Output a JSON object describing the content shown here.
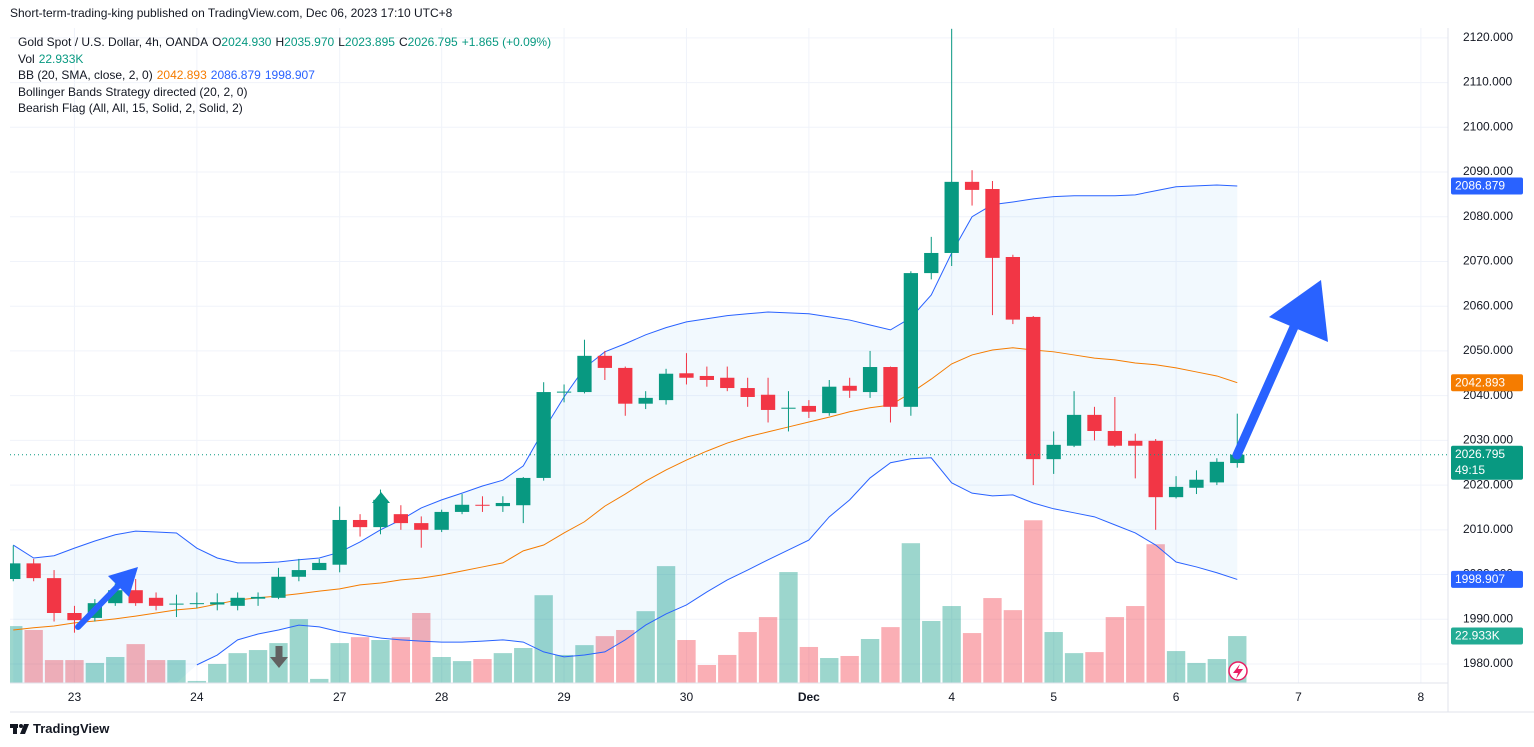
{
  "chart_data": {
    "type": "candlestick",
    "published": "Short-term-trading-king published on TradingView.com, Dec 06, 2023 17:10 UTC+8",
    "title": "Gold Spot / U.S. Dollar, 4h, OANDA",
    "brand": "TradingView",
    "ohlc_labels": [
      "O",
      "H",
      "L",
      "C"
    ],
    "open_label": "2024.930",
    "high_label": "2035.970",
    "change": "+1.865 (+0.09%)",
    "countdown": "49:15",
    "indicators": [
      "Bollinger Bands Strategy directed (20, 2, 0)",
      "Bearish Flag (All, All, 15, Solid, 2, Solid, 2)"
    ],
    "up_color": "#089981",
    "down_color": "#f23645",
    "grid": true,
    "x": [
      0,
      1,
      2,
      3,
      4,
      5,
      6,
      7,
      8,
      9,
      10,
      11,
      12,
      13,
      14,
      15,
      16,
      17,
      18,
      19,
      20,
      21,
      22,
      23,
      24,
      25,
      26,
      27,
      28,
      29,
      30,
      31,
      32,
      33,
      34,
      35,
      36,
      37,
      38,
      39,
      40,
      41,
      42,
      43,
      44,
      45,
      46,
      47,
      48,
      49,
      50,
      51,
      52,
      53,
      54,
      55,
      56,
      57,
      58,
      59,
      60
    ],
    "xlim": [
      -0.16,
      70.33
    ],
    "xticks": [
      {
        "value": 3,
        "label": "23"
      },
      {
        "value": 9,
        "label": "24"
      },
      {
        "value": 16,
        "label": "27"
      },
      {
        "value": 21,
        "label": "28"
      },
      {
        "value": 27,
        "label": "29"
      },
      {
        "value": 33,
        "label": "30"
      },
      {
        "value": 39,
        "label": "Dec"
      },
      {
        "value": 46,
        "label": "4"
      },
      {
        "value": 51,
        "label": "5"
      },
      {
        "value": 57,
        "label": "6"
      },
      {
        "value": 63,
        "label": "7"
      },
      {
        "value": 69,
        "label": "8"
      }
    ],
    "ylim": [
      1975.75,
      2122.2
    ],
    "yticks": [
      {
        "value": 1980,
        "label": "1980.000"
      },
      {
        "value": 1990,
        "label": "1990.000"
      },
      {
        "value": 2000,
        "label": "2000.000"
      },
      {
        "value": 2010,
        "label": "2010.000"
      },
      {
        "value": 2020,
        "label": "2020.000"
      },
      {
        "value": 2030,
        "label": "2030.000"
      },
      {
        "value": 2040,
        "label": "2040.000"
      },
      {
        "value": 2050,
        "label": "2050.000"
      },
      {
        "value": 2060,
        "label": "2060.000"
      },
      {
        "value": 2070,
        "label": "2070.000"
      },
      {
        "value": 2080,
        "label": "2080.000"
      },
      {
        "value": 2090,
        "label": "2090.000"
      },
      {
        "value": 2100,
        "label": "2100.000"
      },
      {
        "value": 2110,
        "label": "2110.000"
      },
      {
        "value": 2120,
        "label": "2120.000"
      }
    ],
    "open": [
      1999,
      2002.5,
      1999.2,
      1991.4,
      1990.3,
      1993.6,
      1996.5,
      1994.8,
      1993.4,
      1993.4,
      1993.3,
      1993,
      1994.6,
      1994.8,
      1999.5,
      2001,
      2002.2,
      2012.2,
      2010.6,
      2013.5,
      2011.5,
      2010,
      2014,
      2015.6,
      2015.3,
      2015.5,
      2021.6,
      2040.7,
      2040.8,
      2048.9,
      2046.2,
      2038.2,
      2039,
      2045,
      2044.4,
      2044,
      2041.7,
      2040.2,
      2037.2,
      2037.7,
      2036.1,
      2042.2,
      2040.8,
      2046.4,
      2037.5,
      2067.4,
      2071.9,
      2087.8,
      2086.2,
      2071,
      2057.6,
      2025.8,
      2028.8,
      2035.7,
      2032.1,
      2029.9,
      2029.9,
      2017.3,
      2019.4,
      2020.6,
      2024.93
    ],
    "high": [
      2006.5,
      2003.5,
      2001,
      1993,
      1994.5,
      1998,
      1999,
      1996,
      1995.5,
      1996,
      1995.8,
      1996,
      1996,
      2001.5,
      2003.5,
      2003.5,
      2015.2,
      2013.5,
      2019,
      2015.5,
      2013,
      2014.5,
      2018,
      2017.5,
      2017.5,
      2021.8,
      2043,
      2042.5,
      2052.5,
      2050,
      2046.5,
      2041,
      2046,
      2049.5,
      2046.5,
      2046.5,
      2044,
      2044,
      2041,
      2039,
      2043.5,
      2044,
      2050,
      2046.5,
      2067.8,
      2075.5,
      2122,
      2090.4,
      2088,
      2071.5,
      2057.8,
      2032,
      2041,
      2037.5,
      2039.7,
      2031.5,
      2030.3,
      2022,
      2023.3,
      2026,
      2035.97
    ],
    "low": [
      1998.5,
      1998.5,
      1989.5,
      1987,
      1989.5,
      1993,
      1993,
      1992,
      1990.5,
      1992.5,
      1992,
      1992,
      1993,
      1994.5,
      1998.5,
      2001,
      2000.5,
      2008.5,
      2009,
      2010,
      2006,
      2009.5,
      2013.5,
      2014,
      2014,
      2011.5,
      2021,
      2038.5,
      2040.5,
      2043.5,
      2035.5,
      2037,
      2038,
      2042.5,
      2042,
      2041,
      2037.5,
      2034,
      2032,
      2035,
      2035.5,
      2039.5,
      2039.5,
      2034,
      2035.5,
      2066,
      2069,
      2082.5,
      2058,
      2056,
      2020,
      2022.5,
      2028.5,
      2030,
      2028.5,
      2021.5,
      2010,
      2017,
      2018,
      2020,
      2023.895
    ],
    "close": [
      2002.5,
      1999.2,
      1991.4,
      1989.8,
      1993.6,
      1996.5,
      1993.6,
      1993,
      1993.5,
      1993.6,
      1993.8,
      1994.8,
      1995,
      1999.5,
      2001,
      2002.6,
      2012.2,
      2010.6,
      2016.7,
      2011.5,
      2010,
      2014,
      2015.6,
      2015.4,
      2016,
      2021.6,
      2040.8,
      2040.9,
      2048.9,
      2046.2,
      2038.2,
      2039.5,
      2044.9,
      2044,
      2043.5,
      2041.7,
      2039.7,
      2036.8,
      2037.3,
      2036.4,
      2042,
      2041.1,
      2046.4,
      2037.5,
      2067.4,
      2071.9,
      2087.8,
      2086,
      2070.8,
      2057,
      2025.8,
      2029,
      2035.7,
      2032.1,
      2028.8,
      2028.8,
      2017.3,
      2019.6,
      2021.2,
      2025.2,
      2026.795
    ],
    "volume": {
      "name": "Vol",
      "last_label": "22.933K",
      "vlim": [
        0,
        320000
      ],
      "values": [
        27800,
        25900,
        11200,
        11200,
        9800,
        12700,
        19000,
        11200,
        11200,
        1000,
        9300,
        14600,
        16100,
        19500,
        31200,
        2000,
        19500,
        22400,
        21000,
        22400,
        34200,
        12700,
        10700,
        11700,
        14600,
        17100,
        42900,
        13700,
        18500,
        22900,
        25900,
        35100,
        57100,
        21000,
        8800,
        13700,
        24900,
        32200,
        54200,
        17600,
        12200,
        13200,
        21500,
        27300,
        68300,
        30300,
        37600,
        24400,
        41500,
        35600,
        79500,
        24900,
        14600,
        15100,
        32200,
        37600,
        67800,
        15600,
        9800,
        11700,
        22933
      ]
    },
    "bands": {
      "name": "BB (20, SMA, close, 2, 0)",
      "fill": "rgba(33,150,243,0.06)",
      "series": [
        {
          "color": "#f57c00",
          "values": [
            1987.6,
            1988.1,
            1988.5,
            1989.2,
            1989.6,
            1990.1,
            1990.7,
            1991.4,
            1992.1,
            1992.5,
            1993.4,
            1994.3,
            1994.8,
            1995.2,
            1995.7,
            1996.3,
            1996.8,
            1997.7,
            1998.1,
            1998.8,
            1999.2,
            1999.9,
            2000.8,
            2001.7,
            2002.6,
            2005.3,
            2006.6,
            2009.3,
            2011.8,
            2015.3,
            2018,
            2020.9,
            2023.4,
            2025.6,
            2027.6,
            2029.4,
            2030.8,
            2031.9,
            2033,
            2034.1,
            2035.2,
            2036.4,
            2037.3,
            2037.9,
            2040.6,
            2043.7,
            2047.1,
            2049.1,
            2050.2,
            2050.7,
            2050.2,
            2049.8,
            2049.1,
            2048.4,
            2048,
            2047.3,
            2046.9,
            2046.2,
            2045.3,
            2044.4,
            2042.893
          ]
        },
        {
          "color": "#2962ff",
          "values": [
            2006.6,
            2003.7,
            2004.2,
            2005.9,
            2007.5,
            2008.9,
            2009.7,
            2009.5,
            2009.3,
            2005.9,
            2003.7,
            2002.6,
            2002.6,
            2002.8,
            2003.3,
            2003.7,
            2005,
            2007.3,
            2010,
            2012.2,
            2014.9,
            2016.7,
            2018.2,
            2019.8,
            2021.1,
            2024.3,
            2032.3,
            2039.7,
            2046.2,
            2049.8,
            2051.6,
            2053.6,
            2055.2,
            2056.5,
            2057.2,
            2057.9,
            2058.3,
            2058.7,
            2058.5,
            2058.3,
            2057.6,
            2056.9,
            2055.8,
            2054.7,
            2057.4,
            2062.5,
            2071.9,
            2080,
            2082.7,
            2083.3,
            2084,
            2084.5,
            2084.7,
            2084.7,
            2084.7,
            2084.9,
            2085.8,
            2086.7,
            2086.9,
            2087.1,
            2086.879
          ]
        },
        {
          "color": "#2962ff",
          "values": [
            null,
            null,
            null,
            null,
            null,
            null,
            null,
            null,
            null,
            1979.8,
            1982,
            1985.4,
            1986.7,
            1987.6,
            1988.7,
            1988.3,
            1987.2,
            1986.5,
            1985.8,
            1985.4,
            1985.1,
            1984.9,
            1984.9,
            1985.1,
            1985.4,
            1984.9,
            1982.7,
            1981.6,
            1982,
            1982.7,
            1985.4,
            1988.7,
            1991.2,
            1993.2,
            1996.1,
            1998.8,
            2001,
            2003.3,
            2005.5,
            2007.7,
            2012.9,
            2016.7,
            2021.6,
            2025,
            2025.9,
            2026.1,
            2020.5,
            2018.2,
            2017.6,
            2017.8,
            2016,
            2014.7,
            2013.8,
            2012.9,
            2011.1,
            2009.3,
            2006.6,
            2002.8,
            2001.7,
            2000.4,
            1998.907
          ]
        }
      ]
    }
  }
}
